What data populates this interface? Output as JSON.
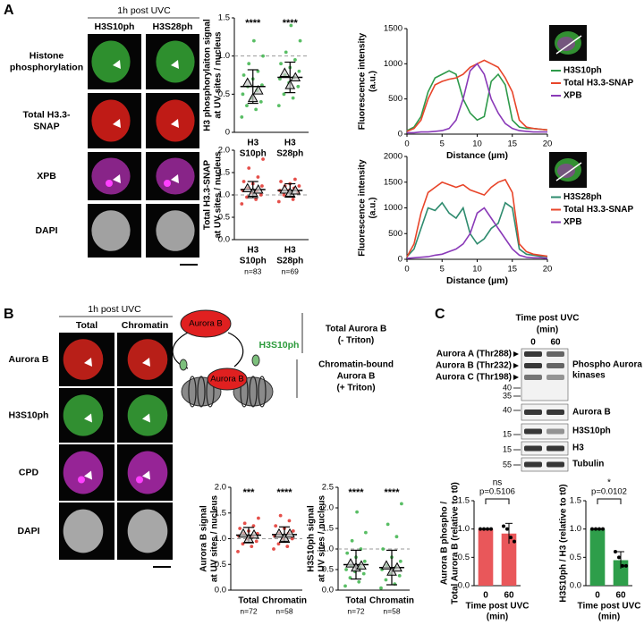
{
  "panel_labels": [
    "A",
    "B",
    "C"
  ],
  "panel_a": {
    "header": "1h post UVC",
    "columns": [
      "H3S10ph",
      "H3S28ph"
    ],
    "rows": [
      [
        "Histone",
        "phosphorylation"
      ],
      [
        "Total H3.3-",
        "SNAP"
      ],
      [
        "XPB"
      ],
      [
        "DAPI"
      ]
    ]
  },
  "panel_b": {
    "header": "1h post UVC",
    "columns": [
      "Total",
      "Chromatin"
    ],
    "rows": [
      [
        "Aurora B"
      ],
      [
        "H3S10ph"
      ],
      [
        "CPD"
      ],
      [
        "DAPI"
      ]
    ],
    "diagram": {
      "protein": "Aurora B",
      "protein_bound": "Aurora B",
      "mark": "H3S10ph",
      "total": [
        "Total Aurora B",
        "(- Triton)"
      ],
      "chromatin": [
        "Chromatin-bound",
        "Aurora B",
        "(+ Triton)"
      ]
    }
  },
  "panel_c": {
    "blot": {
      "title": [
        "Time post UVC",
        "(min)"
      ],
      "lanes": [
        0,
        60
      ],
      "left_labels": [
        "Aurora A (Thr288)",
        "Aurora B (Thr232)",
        "Aurora C (Thr198)"
      ],
      "markers": [
        40,
        35,
        40,
        15,
        15,
        55
      ],
      "right_labels": [
        [
          "Phospho Aurora",
          "kinases"
        ],
        [
          "Aurora B"
        ],
        [
          "H3S10ph"
        ],
        [
          "H3"
        ],
        [
          "Tubulin"
        ]
      ]
    }
  },
  "chart_data": [
    {
      "type": "dot",
      "ylabel": [
        "H3 phosphorylaiton signal",
        "at UV sites / nucleus"
      ],
      "categories": [
        [
          "H3",
          "S10ph"
        ],
        [
          "H3",
          "S28ph"
        ]
      ],
      "stars": [
        "****",
        "****"
      ],
      "points": [
        [
          0.2,
          0.3,
          0.35,
          0.4,
          0.45,
          0.5,
          0.55,
          0.6,
          0.62,
          0.7,
          0.75,
          0.8,
          0.9,
          1.0,
          1.2
        ],
        [
          0.35,
          0.45,
          0.5,
          0.6,
          0.65,
          0.7,
          0.72,
          0.75,
          0.8,
          0.85,
          0.9,
          0.95,
          1.05,
          1.2,
          1.4
        ]
      ],
      "means": [
        0.6,
        0.72
      ],
      "sd": [
        0.22,
        0.2
      ],
      "replicate_means": [
        [
          0.65,
          0.45,
          0.55
        ],
        [
          0.78,
          0.62,
          0.72
        ]
      ],
      "color": "#3cb34a",
      "ylim": [
        0,
        1.5
      ],
      "yticks": [
        0,
        0.5,
        {
          "value": 1,
          "label": "1.0"
        },
        1.5
      ],
      "reference_line": 1
    },
    {
      "type": "dot",
      "ylabel": [
        "Total H3.3-SNAP",
        "at UV sites / nucleus"
      ],
      "categories": [
        [
          "H3",
          "S10ph"
        ],
        [
          "H3",
          "S28ph"
        ]
      ],
      "n_labels": [
        "n=83",
        "n=69"
      ],
      "points": [
        [
          0.8,
          0.9,
          0.95,
          1.0,
          1.05,
          1.1,
          1.1,
          1.15,
          1.2,
          1.25,
          1.3,
          1.4,
          1.6,
          1.8
        ],
        [
          0.85,
          0.9,
          1.0,
          1.05,
          1.1,
          1.1,
          1.15,
          1.2,
          1.2,
          1.25,
          1.3,
          1.35
        ]
      ],
      "means": [
        1.12,
        1.1
      ],
      "sd": [
        0.18,
        0.15
      ],
      "replicate_means": [
        [
          1.15,
          1.05,
          1.12
        ],
        [
          1.12,
          1.05,
          1.1
        ]
      ],
      "color": "#e0302a",
      "ylim": [
        0,
        2
      ],
      "yticks": [
        {
          "value": 0,
          "label": "0.0"
        },
        0.5,
        {
          "value": 1,
          "label": "1.0"
        },
        1.5,
        {
          "value": 2,
          "label": "2.0"
        }
      ],
      "reference_line": 1
    },
    {
      "type": "line",
      "ylabel": [
        "Fluorescence intensity",
        "(a.u.)"
      ],
      "xlabel": "Distance (µm)",
      "legend": "right",
      "x": [
        0,
        1,
        2,
        3,
        4,
        5,
        6,
        7,
        8,
        9,
        10,
        11,
        12,
        13,
        14,
        15,
        16,
        17,
        18,
        19,
        20
      ],
      "series": [
        {
          "name": "H3S10ph",
          "color": "#2e9a4a",
          "values": [
            50,
            100,
            250,
            600,
            800,
            850,
            900,
            850,
            500,
            300,
            200,
            250,
            750,
            850,
            700,
            200,
            100,
            80,
            80,
            70,
            60
          ]
        },
        {
          "name": "Total H3.3-SNAP",
          "color": "#e8452a",
          "values": [
            40,
            80,
            200,
            500,
            700,
            750,
            780,
            800,
            850,
            950,
            1000,
            1050,
            1000,
            950,
            800,
            600,
            200,
            100,
            80,
            70,
            60
          ]
        },
        {
          "name": "XPB",
          "color": "#8a3ab8",
          "values": [
            20,
            20,
            30,
            30,
            40,
            50,
            80,
            200,
            500,
            900,
            1000,
            850,
            500,
            300,
            150,
            80,
            50,
            40,
            30,
            30,
            30
          ]
        }
      ],
      "xlim": [
        0,
        20
      ],
      "xticks": [
        0,
        5,
        10,
        15,
        20
      ],
      "ylim": [
        0,
        1500
      ],
      "yticks": [
        0,
        500,
        1000,
        1500
      ]
    },
    {
      "type": "line",
      "ylabel": [
        "Fluorescence intensity",
        "(a.u.)"
      ],
      "xlabel": "Distance (µm)",
      "legend": "right",
      "x": [
        0,
        1,
        2,
        3,
        4,
        5,
        6,
        7,
        8,
        9,
        10,
        11,
        12,
        13,
        14,
        15,
        16,
        17,
        18,
        19,
        20
      ],
      "series": [
        {
          "name": "H3S28ph",
          "color": "#2e8b6e",
          "values": [
            50,
            200,
            600,
            1000,
            950,
            1100,
            900,
            800,
            1000,
            500,
            300,
            400,
            600,
            700,
            1100,
            1000,
            200,
            100,
            80,
            60,
            50
          ]
        },
        {
          "name": "Total H3.3-SNAP",
          "color": "#e8452a",
          "values": [
            50,
            300,
            900,
            1300,
            1400,
            1500,
            1450,
            1400,
            1450,
            1350,
            1300,
            1250,
            1400,
            1500,
            1550,
            1300,
            300,
            150,
            100,
            80,
            60
          ]
        },
        {
          "name": "XPB",
          "color": "#8a3ab8",
          "values": [
            20,
            30,
            40,
            50,
            80,
            100,
            150,
            200,
            300,
            500,
            900,
            1000,
            800,
            600,
            400,
            200,
            80,
            40,
            30,
            30,
            20
          ]
        }
      ],
      "xlim": [
        0,
        20
      ],
      "xticks": [
        0,
        5,
        10,
        15,
        20
      ],
      "ylim": [
        0,
        2000
      ],
      "yticks": [
        0,
        500,
        1000,
        1500,
        2000
      ]
    },
    {
      "type": "dot",
      "ylabel": [
        "Aurora B signal",
        "at UV sites / nucleus"
      ],
      "categories": [
        [
          "Total"
        ],
        [
          "Chromatin"
        ]
      ],
      "stars": [
        "***",
        "****"
      ],
      "n_labels": [
        "n=72",
        "n=58"
      ],
      "points": [
        [
          0.75,
          0.85,
          0.9,
          0.95,
          1.0,
          1.05,
          1.05,
          1.1,
          1.1,
          1.15,
          1.2,
          1.25,
          1.3,
          1.4
        ],
        [
          0.8,
          0.85,
          0.9,
          1.0,
          1.0,
          1.05,
          1.1,
          1.1,
          1.15,
          1.2,
          1.25,
          1.35,
          1.45
        ]
      ],
      "means": [
        1.07,
        1.08
      ],
      "sd": [
        0.15,
        0.15
      ],
      "replicate_means": [
        [
          1.1,
          1.0,
          1.08
        ],
        [
          1.1,
          1.02,
          1.1
        ]
      ],
      "color": "#e0302a",
      "ylim": [
        0,
        2
      ],
      "yticks": [
        {
          "value": 0,
          "label": "0.0"
        },
        0.5,
        {
          "value": 1,
          "label": "1.0"
        },
        1.5,
        {
          "value": 2,
          "label": "2.0"
        }
      ],
      "reference_line": 1
    },
    {
      "type": "dot",
      "ylabel": [
        "H3S10ph signal",
        "at UV sites / nucleus"
      ],
      "categories": [
        [
          "Total"
        ],
        [
          "Chromatin"
        ]
      ],
      "stars": [
        "****",
        "****"
      ],
      "n_labels": [
        "n=72",
        "n=58"
      ],
      "points": [
        [
          0.1,
          0.2,
          0.3,
          0.4,
          0.45,
          0.5,
          0.55,
          0.6,
          0.7,
          0.8,
          0.9,
          1.0,
          1.2,
          1.4,
          1.9
        ],
        [
          0.05,
          0.15,
          0.25,
          0.35,
          0.4,
          0.5,
          0.55,
          0.6,
          0.7,
          0.8,
          1.0,
          1.3,
          1.6,
          2.1
        ]
      ],
      "means": [
        0.62,
        0.55
      ],
      "sd": [
        0.35,
        0.42
      ],
      "replicate_means": [
        [
          0.65,
          0.55,
          0.6
        ],
        [
          0.6,
          0.45,
          0.55
        ]
      ],
      "color": "#3cb34a",
      "ylim": [
        0,
        2.5
      ],
      "yticks": [
        {
          "value": 0,
          "label": "0.0"
        },
        0.5,
        {
          "value": 1,
          "label": "1.0"
        },
        1.5,
        {
          "value": 2,
          "label": "2.0"
        },
        2.5
      ],
      "reference_line": 1
    },
    {
      "type": "bar",
      "ylabel": [
        "Aurora B phospho /",
        "Total Aurora B (relative to t0)"
      ],
      "xlabel": [
        "Time post UVC",
        "(min)"
      ],
      "categories": [
        0,
        60
      ],
      "values": [
        1,
        0.92
      ],
      "sd": [
        0,
        0.18
      ],
      "points": [
        [
          1,
          1,
          1,
          1
        ],
        [
          1.05,
          1.0,
          0.85,
          0.78
        ]
      ],
      "annotations": [
        "ns",
        "p=0.5106"
      ],
      "color": "#e9575a",
      "ylim": [
        0,
        1.5
      ],
      "yticks": [
        {
          "value": 0,
          "label": "0.0"
        },
        0.5,
        {
          "value": 1,
          "label": "1.0"
        },
        1.5
      ]
    },
    {
      "type": "bar",
      "ylabel": [
        "H3S10ph / H3 (relative to t0)"
      ],
      "xlabel": [
        "Time post UVC",
        "(min)"
      ],
      "categories": [
        0,
        60
      ],
      "values": [
        1,
        0.45
      ],
      "sd": [
        0,
        0.15
      ],
      "points": [
        [
          1,
          1,
          1,
          1
        ],
        [
          0.6,
          0.5,
          0.35,
          0.35
        ]
      ],
      "annotations": [
        "*",
        "p=0.0102"
      ],
      "color": "#2e9e4a",
      "ylim": [
        0,
        1.5
      ],
      "yticks": [
        {
          "value": 0,
          "label": "0.0"
        },
        0.5,
        {
          "value": 1,
          "label": "1.0"
        },
        1.5
      ]
    }
  ]
}
